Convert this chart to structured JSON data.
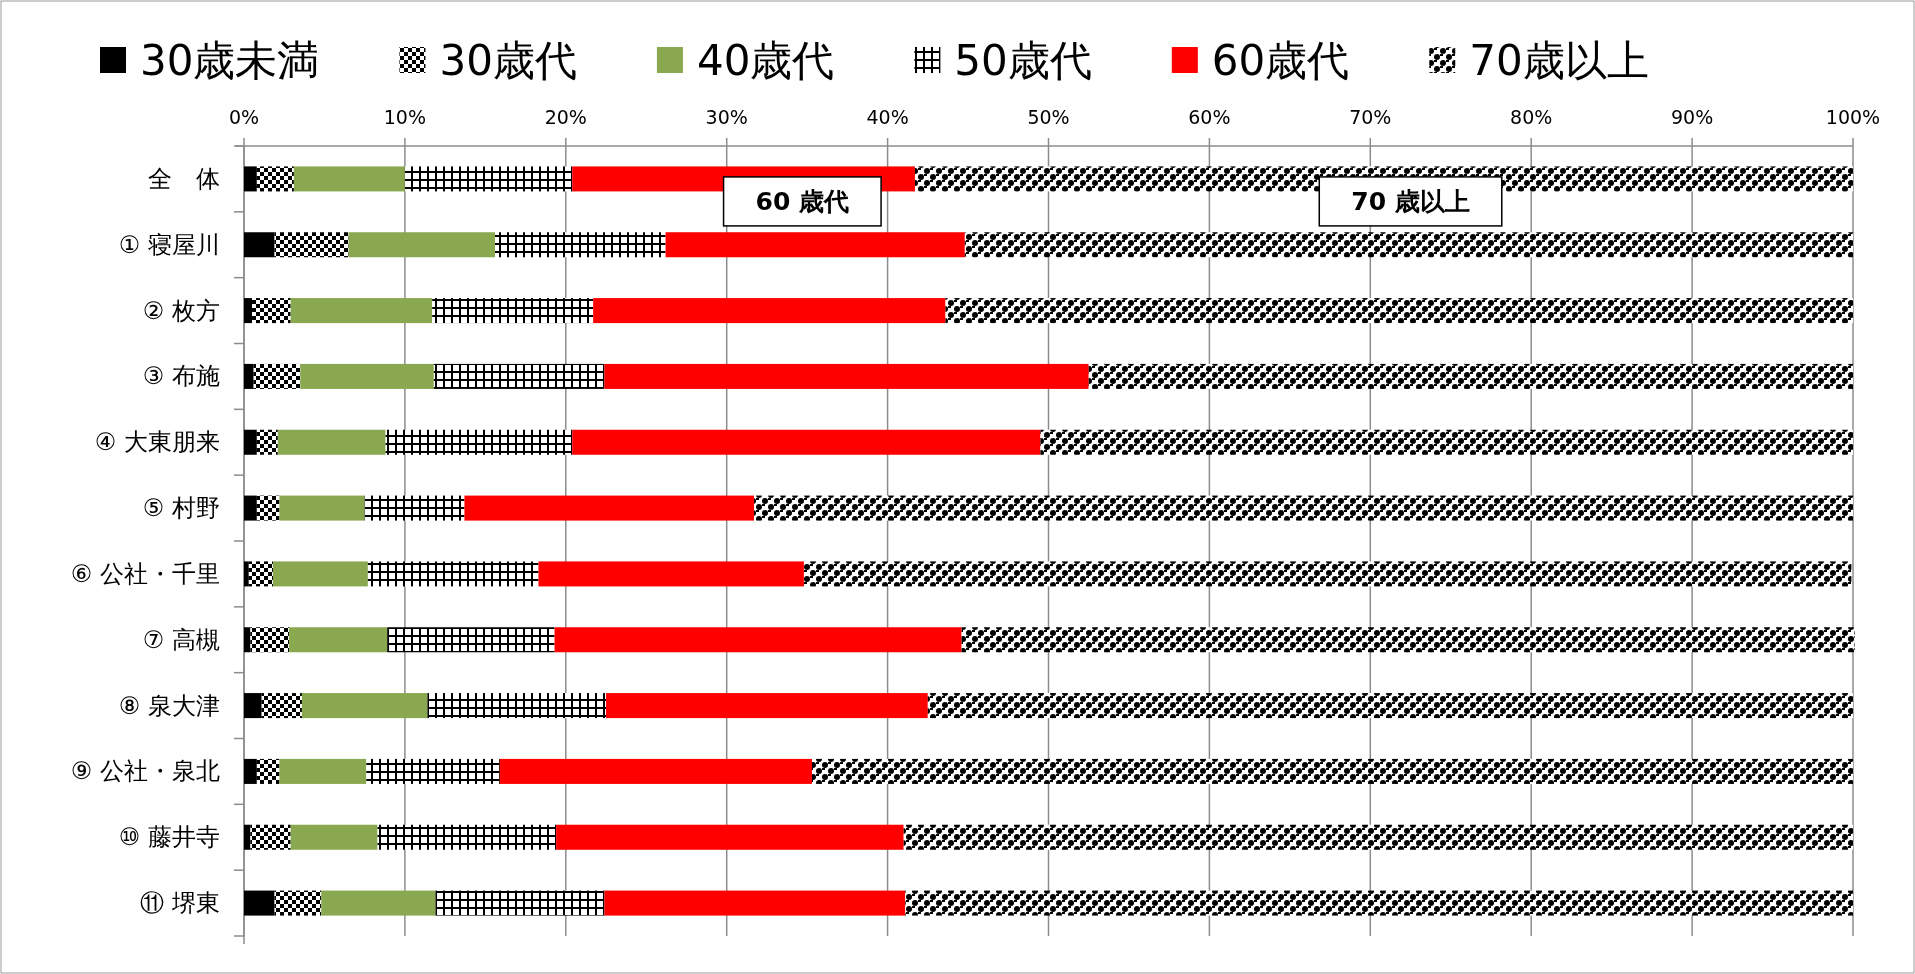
{
  "chart_data": {
    "type": "bar",
    "orientation": "horizontal",
    "stacked": true,
    "legend": "top",
    "grid": "x",
    "categories": [
      "全　体",
      "① 寝屋川",
      "② 枚方",
      "③ 布施",
      "④ 大東朋来",
      "⑤ 村野",
      "⑥ 公社・千里",
      "⑦ 高槻",
      "⑧ 泉大津",
      "⑨ 公社・泉北",
      "⑩ 藤井寺",
      "⑪ 堺東"
    ],
    "xlim": [
      0,
      100
    ],
    "xticks": [
      {
        "value": 0,
        "label": "0%"
      },
      {
        "value": 10,
        "label": "10%"
      },
      {
        "value": 20,
        "label": "20%"
      },
      {
        "value": 30,
        "label": "30%"
      },
      {
        "value": 40,
        "label": "40%"
      },
      {
        "value": 50,
        "label": "50%"
      },
      {
        "value": 60,
        "label": "60%"
      },
      {
        "value": 70,
        "label": "70%"
      },
      {
        "value": 80,
        "label": "80%"
      },
      {
        "value": 90,
        "label": "90%"
      },
      {
        "value": 100,
        "label": "100%"
      }
    ],
    "series": [
      {
        "name": "30歳未満",
        "color": "#000000",
        "values": [
          0.8,
          1.9,
          0.5,
          0.6,
          0.8,
          0.8,
          0.3,
          0.4,
          1.1,
          0.8,
          0.4,
          1.9
        ]
      },
      {
        "name": "30歳代",
        "color": "#000000",
        "values": [
          2.3,
          4.6,
          2.4,
          2.9,
          1.3,
          1.4,
          1.5,
          2.4,
          2.5,
          1.4,
          2.5,
          2.9
        ]
      },
      {
        "name": "40歳代",
        "color": "#8aa84f",
        "values": [
          6.9,
          9.1,
          8.8,
          8.3,
          6.7,
          5.3,
          5.9,
          6.1,
          7.8,
          5.4,
          5.4,
          7.1
        ]
      },
      {
        "name": "50歳代",
        "color": "#000000",
        "values": [
          10.4,
          10.6,
          10.0,
          10.6,
          11.6,
          6.2,
          10.6,
          10.4,
          11.1,
          8.3,
          11.1,
          10.5
        ]
      },
      {
        "name": "60歳代",
        "color": "#ff0000",
        "values": [
          21.3,
          18.6,
          21.9,
          30.1,
          29.1,
          18.0,
          16.5,
          25.3,
          20.0,
          19.4,
          21.6,
          18.7
        ]
      },
      {
        "name": "70歳以上",
        "color": "#000000",
        "values": [
          58.3,
          55.2,
          56.4,
          47.5,
          50.5,
          68.3,
          65.1,
          55.5,
          57.5,
          64.7,
          59.0,
          58.9
        ]
      }
    ],
    "annotations": [
      "60 歳代",
      "70 歳以上"
    ]
  }
}
